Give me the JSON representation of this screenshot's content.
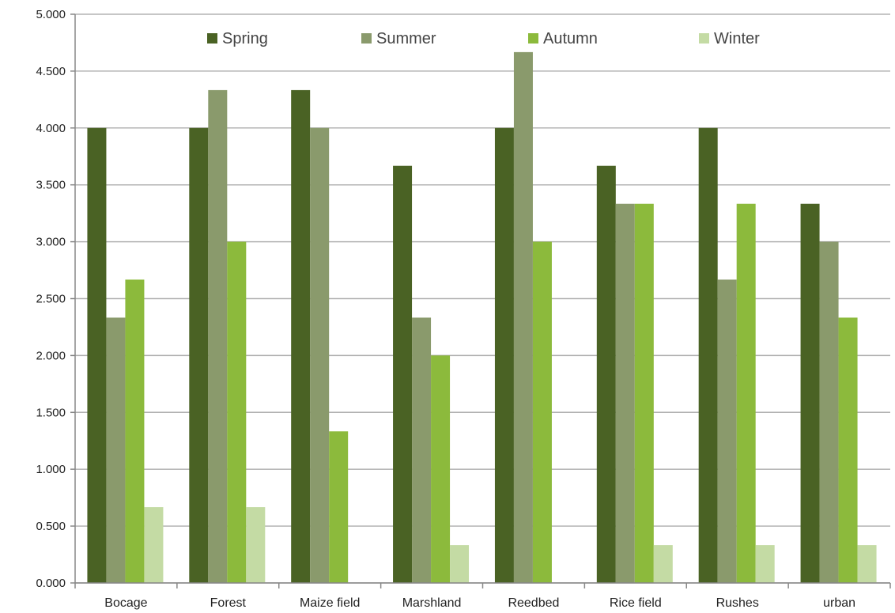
{
  "chart_data": {
    "type": "bar",
    "categories": [
      "Bocage",
      "Forest",
      "Maize field",
      "Marshland",
      "Reedbed",
      "Rice field",
      "Rushes",
      "urban"
    ],
    "series": [
      {
        "name": "Spring",
        "color": "#4a6224",
        "values": [
          4.0,
          4.0,
          4.333,
          3.667,
          4.0,
          3.667,
          4.0,
          3.333
        ]
      },
      {
        "name": "Summer",
        "color": "#8a9a6c",
        "values": [
          2.333,
          4.333,
          4.0,
          2.333,
          4.667,
          3.333,
          2.667,
          3.0
        ]
      },
      {
        "name": "Autumn",
        "color": "#8cba3c",
        "values": [
          2.667,
          3.0,
          1.333,
          2.0,
          3.0,
          3.333,
          3.333,
          2.333
        ]
      },
      {
        "name": "Winter",
        "color": "#c4dba4",
        "values": [
          0.667,
          0.667,
          0.0,
          0.333,
          0.0,
          0.333,
          0.333,
          0.333
        ]
      }
    ],
    "yticks": [
      "0.000",
      "0.500",
      "1.000",
      "1.500",
      "2.000",
      "2.500",
      "3.000",
      "3.500",
      "4.000",
      "4.500",
      "5.000"
    ],
    "ylim": [
      0,
      5
    ],
    "title": "",
    "xlabel": "",
    "ylabel": "",
    "grid": true,
    "legend": "top-center"
  }
}
